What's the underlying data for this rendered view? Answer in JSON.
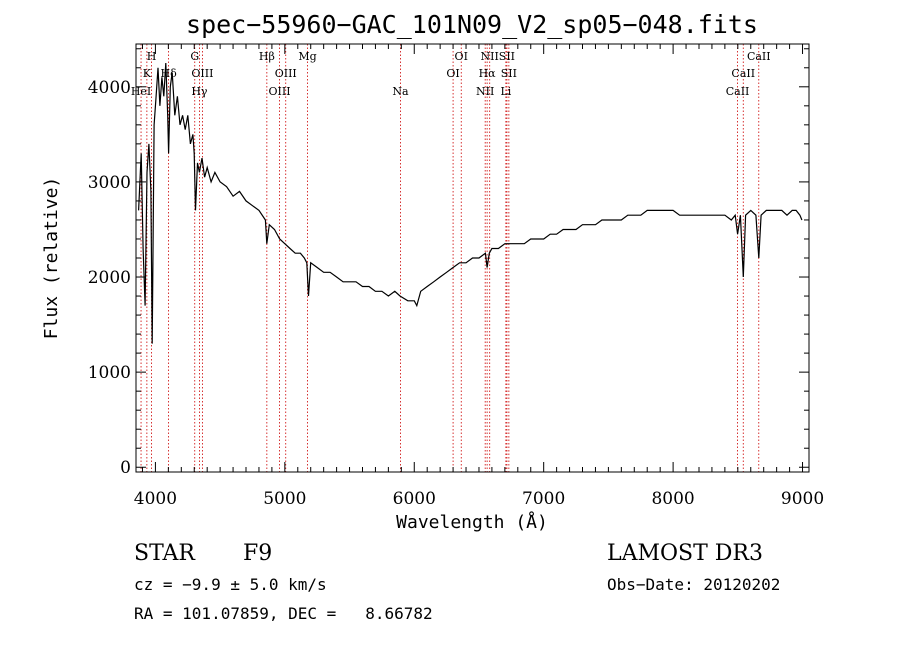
{
  "chart_data": {
    "type": "line",
    "title": "spec−55960−GAC_101N09_V2_sp05−048.fits",
    "xlabel": "Wavelength (Å)",
    "ylabel": "Flux (relative)",
    "xlim": [
      3850,
      9050
    ],
    "ylim": [
      -50,
      4450
    ],
    "x_ticks": [
      4000,
      5000,
      6000,
      7000,
      8000,
      9000
    ],
    "y_ticks": [
      0,
      1000,
      2000,
      3000,
      4000
    ],
    "grid": false,
    "series": [
      {
        "color": "#000000",
        "x": [
          3870,
          3890,
          3905,
          3920,
          3935,
          3950,
          3965,
          3975,
          3990,
          4005,
          4020,
          4035,
          4050,
          4065,
          4080,
          4095,
          4102,
          4115,
          4130,
          4150,
          4170,
          4190,
          4210,
          4230,
          4250,
          4270,
          4290,
          4300,
          4310,
          4325,
          4340,
          4360,
          4380,
          4400,
          4430,
          4460,
          4500,
          4550,
          4600,
          4650,
          4700,
          4750,
          4800,
          4850,
          4861,
          4880,
          4920,
          4960,
          5000,
          5040,
          5080,
          5120,
          5150,
          5170,
          5183,
          5200,
          5250,
          5300,
          5350,
          5400,
          5450,
          5500,
          5550,
          5600,
          5650,
          5700,
          5750,
          5800,
          5850,
          5890,
          5950,
          6000,
          6020,
          6050,
          6100,
          6150,
          6200,
          6250,
          6300,
          6350,
          6400,
          6450,
          6500,
          6550,
          6563,
          6580,
          6600,
          6650,
          6700,
          6750,
          6800,
          6850,
          6900,
          6950,
          7000,
          7050,
          7100,
          7150,
          7200,
          7250,
          7300,
          7350,
          7400,
          7450,
          7500,
          7550,
          7600,
          7650,
          7700,
          7750,
          7800,
          7850,
          7900,
          7950,
          8000,
          8050,
          8100,
          8150,
          8200,
          8250,
          8300,
          8350,
          8400,
          8450,
          8480,
          8498,
          8520,
          8542,
          8560,
          8600,
          8640,
          8662,
          8680,
          8720,
          8760,
          8800,
          8840,
          8880,
          8920,
          8950,
          8980,
          8995
        ],
        "y": [
          2700,
          3300,
          2300,
          1700,
          3100,
          3400,
          2900,
          1300,
          3600,
          3900,
          4200,
          3800,
          4100,
          3900,
          4250,
          3700,
          3300,
          4000,
          4150,
          3700,
          3900,
          3600,
          3700,
          3550,
          3700,
          3400,
          3500,
          3300,
          2700,
          3200,
          3100,
          3250,
          3050,
          3150,
          3000,
          3100,
          3000,
          2950,
          2850,
          2900,
          2800,
          2750,
          2700,
          2600,
          2350,
          2550,
          2500,
          2400,
          2350,
          2300,
          2250,
          2250,
          2200,
          2150,
          1800,
          2150,
          2100,
          2050,
          2050,
          2000,
          1950,
          1950,
          1950,
          1900,
          1900,
          1850,
          1850,
          1800,
          1850,
          1800,
          1750,
          1750,
          1700,
          1850,
          1900,
          1950,
          2000,
          2050,
          2100,
          2150,
          2150,
          2200,
          2200,
          2250,
          2100,
          2250,
          2300,
          2300,
          2350,
          2350,
          2350,
          2350,
          2400,
          2400,
          2400,
          2450,
          2450,
          2500,
          2500,
          2500,
          2550,
          2550,
          2550,
          2600,
          2600,
          2600,
          2600,
          2650,
          2650,
          2650,
          2700,
          2700,
          2700,
          2700,
          2700,
          2650,
          2650,
          2650,
          2650,
          2650,
          2650,
          2650,
          2650,
          2600,
          2650,
          2450,
          2650,
          2000,
          2650,
          2700,
          2650,
          2200,
          2650,
          2700,
          2700,
          2700,
          2700,
          2650,
          2700,
          2700,
          2650,
          2600
        ]
      }
    ],
    "line_style": {
      "color": "#cc0000",
      "dash": "dotted"
    },
    "lines": [
      {
        "x": 3889,
        "label": "HeI",
        "row": 3
      },
      {
        "x": 3934,
        "label": "K",
        "row": 2
      },
      {
        "x": 3970,
        "label": "H",
        "row": 1
      },
      {
        "x": 4102,
        "label": "Hδ",
        "row": 2
      },
      {
        "x": 4304,
        "label": "G",
        "row": 1
      },
      {
        "x": 4340,
        "label": "Hγ",
        "row": 3
      },
      {
        "x": 4363,
        "label": "OIII",
        "row": 2
      },
      {
        "x": 4861,
        "label": "Hβ",
        "row": 1
      },
      {
        "x": 4959,
        "label": "OIII",
        "row": 3
      },
      {
        "x": 5007,
        "label": "OIII",
        "row": 2
      },
      {
        "x": 5175,
        "label": "Mg",
        "row": 1
      },
      {
        "x": 5893,
        "label": "Na",
        "row": 3
      },
      {
        "x": 6300,
        "label": "OI",
        "row": 2
      },
      {
        "x": 6363,
        "label": "OI",
        "row": 1
      },
      {
        "x": 6548,
        "label": "NII",
        "row": 3
      },
      {
        "x": 6563,
        "label": "Hα",
        "row": 2
      },
      {
        "x": 6583,
        "label": "NII",
        "row": 1
      },
      {
        "x": 6708,
        "label": "Li",
        "row": 3
      },
      {
        "x": 6716,
        "label": "SII",
        "row": 1
      },
      {
        "x": 6731,
        "label": "SII",
        "row": 2
      },
      {
        "x": 8498,
        "label": "CaII",
        "row": 3
      },
      {
        "x": 8542,
        "label": "CaII",
        "row": 2
      },
      {
        "x": 8662,
        "label": "CaII",
        "row": 1
      }
    ]
  },
  "info": {
    "class_label": "STAR",
    "subclass": "F9",
    "survey": "LAMOST DR3",
    "cz": "cz = −9.9 ± 5.0 km/s",
    "obs_date": "Obs−Date: 20120202",
    "coords": "RA = 101.07859, DEC =   8.66782"
  }
}
